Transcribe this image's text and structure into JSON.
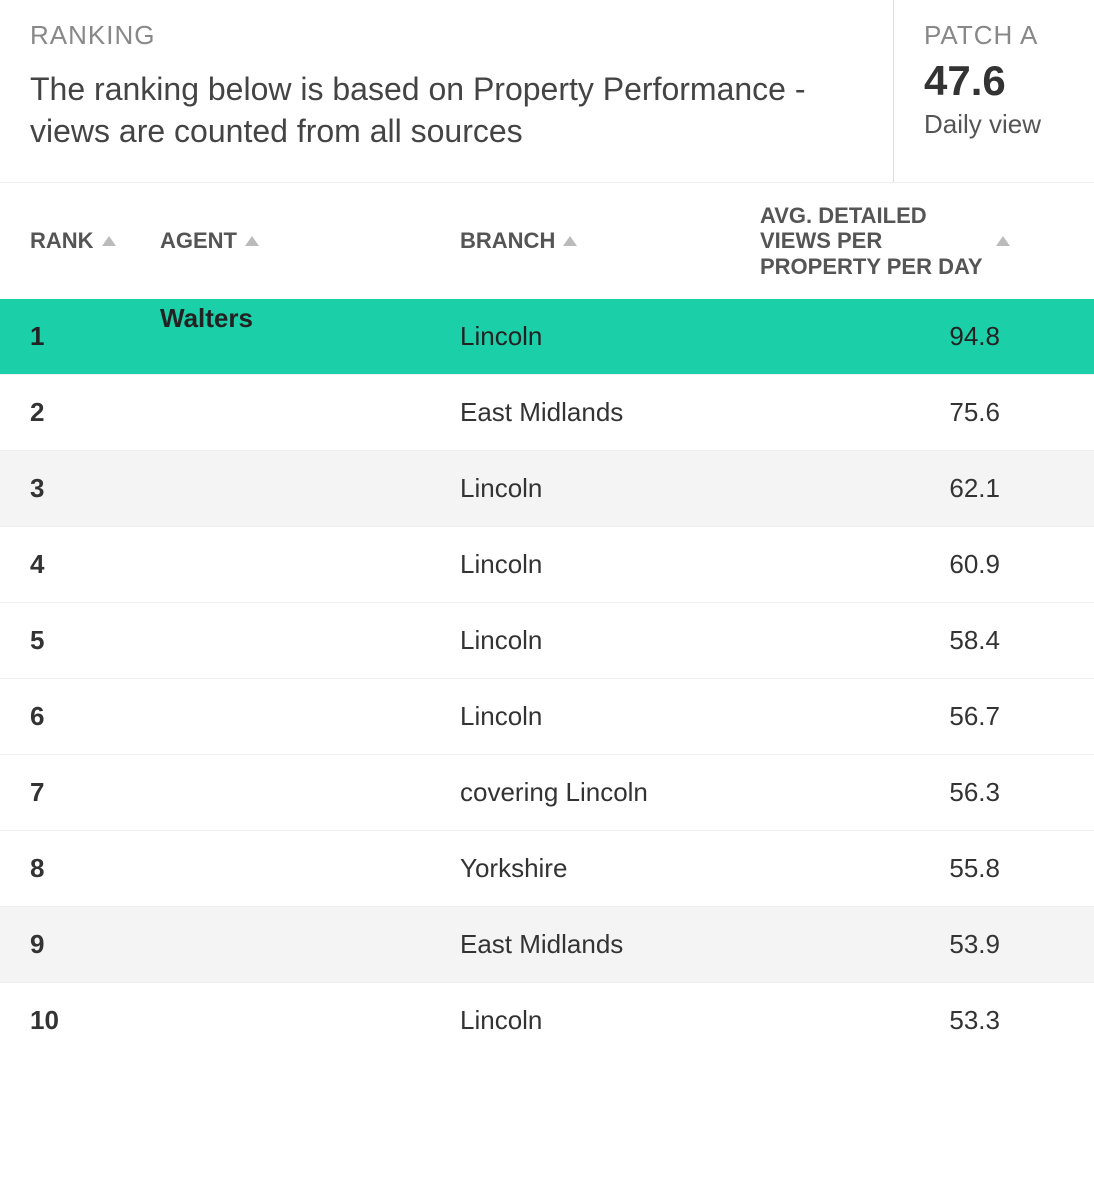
{
  "header": {
    "ranking_label": "RANKING",
    "ranking_desc": "The ranking below is based on Property Performance - views are counted from all sources",
    "patch_label": "PATCH A",
    "patch_value": "47.6",
    "patch_sub": "Daily view"
  },
  "table": {
    "columns": {
      "rank": "RANK",
      "agent": "AGENT",
      "branch": "BRANCH",
      "views": "AVG. DETAILED VIEWS PER PROPERTY PER DAY"
    },
    "rows": [
      {
        "rank": "1",
        "agent": "Walters",
        "branch": "Lincoln",
        "views": "94.8",
        "highlight": true
      },
      {
        "rank": "2",
        "agent": "",
        "branch": "East Midlands",
        "views": "75.6"
      },
      {
        "rank": "3",
        "agent": "",
        "branch": "Lincoln",
        "views": "62.1",
        "alt": true
      },
      {
        "rank": "4",
        "agent": "",
        "branch": "Lincoln",
        "views": "60.9"
      },
      {
        "rank": "5",
        "agent": "",
        "branch": "Lincoln",
        "views": "58.4"
      },
      {
        "rank": "6",
        "agent": "",
        "branch": "Lincoln",
        "views": "56.7"
      },
      {
        "rank": "7",
        "agent": "",
        "branch": "covering Lincoln",
        "views": "56.3"
      },
      {
        "rank": "8",
        "agent": "",
        "branch": "Yorkshire",
        "views": "55.8"
      },
      {
        "rank": "9",
        "agent": "",
        "branch": "East Midlands",
        "views": "53.9",
        "alt": true
      },
      {
        "rank": "10",
        "agent": "",
        "branch": "Lincoln",
        "views": "53.3"
      }
    ]
  },
  "style": {
    "highlight_bg": "#1bcfa8",
    "alt_bg": "#f4f4f4",
    "text_color": "#333333",
    "muted_color": "#888888",
    "sort_icon_color": "#bbbbbb"
  }
}
